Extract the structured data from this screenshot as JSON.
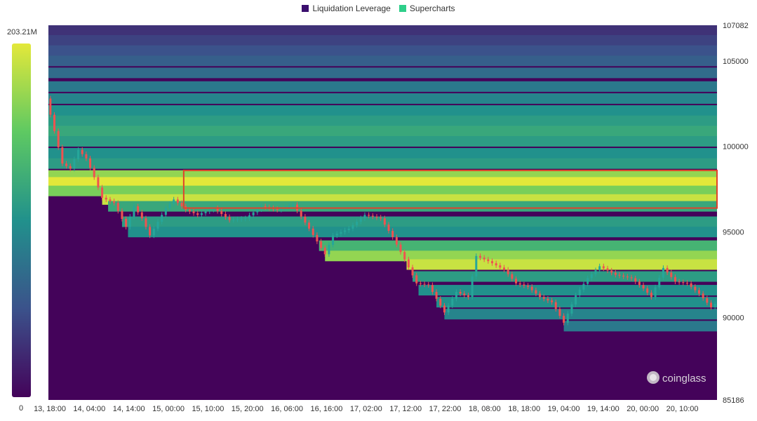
{
  "legend": {
    "items": [
      {
        "label": "Liquidation Leverage",
        "color": "#3b0f6e"
      },
      {
        "label": "Supercharts",
        "color": "#2fcf8a"
      }
    ]
  },
  "colorbar": {
    "max_label": "203.21M",
    "min_label": "0",
    "colors": [
      "#44035a",
      "#3b528b",
      "#21918c",
      "#5ec962",
      "#e3e83a"
    ]
  },
  "watermark": {
    "text": "coinglass",
    "icon": "coinglass-logo-icon"
  },
  "highlight": {
    "color": "#e0422b",
    "from": "15, 04:00",
    "price_low": 96400,
    "price_high": 98600
  },
  "chart_data": {
    "type": "heatmap",
    "title": "",
    "x_ticks": [
      "13, 18:00",
      "14, 04:00",
      "14, 14:00",
      "15, 00:00",
      "15, 10:00",
      "15, 20:00",
      "16, 06:00",
      "16, 16:00",
      "17, 02:00",
      "17, 12:00",
      "17, 22:00",
      "18, 08:00",
      "18, 18:00",
      "19, 04:00",
      "19, 14:00",
      "20, 00:00",
      "20, 10:00"
    ],
    "y_ticks": [
      "107082",
      "105000",
      "100000",
      "95000",
      "90000",
      "85186"
    ],
    "ylim": [
      85186,
      107082
    ],
    "x_range_hours": [
      0,
      168
    ],
    "price_path": [
      [
        0,
        102800
      ],
      [
        4,
        99000
      ],
      [
        6,
        98700
      ],
      [
        8,
        99800
      ],
      [
        10,
        99300
      ],
      [
        12,
        98200
      ],
      [
        14,
        97000
      ],
      [
        17,
        96700
      ],
      [
        20,
        95300
      ],
      [
        22,
        96500
      ],
      [
        24,
        95800
      ],
      [
        26,
        94800
      ],
      [
        28,
        95600
      ],
      [
        30,
        96400
      ],
      [
        32,
        96900
      ],
      [
        35,
        96300
      ],
      [
        38,
        96000
      ],
      [
        42,
        96400
      ],
      [
        46,
        95700
      ],
      [
        50,
        95800
      ],
      [
        54,
        96500
      ],
      [
        58,
        96300
      ],
      [
        62,
        96600
      ],
      [
        66,
        95200
      ],
      [
        70,
        93700
      ],
      [
        72,
        94800
      ],
      [
        76,
        95200
      ],
      [
        80,
        96000
      ],
      [
        84,
        95800
      ],
      [
        87,
        94700
      ],
      [
        90,
        93400
      ],
      [
        93,
        92000
      ],
      [
        96,
        91900
      ],
      [
        100,
        90300
      ],
      [
        103,
        91500
      ],
      [
        106,
        91200
      ],
      [
        108,
        93600
      ],
      [
        111,
        93300
      ],
      [
        115,
        92800
      ],
      [
        118,
        92000
      ],
      [
        121,
        91800
      ],
      [
        124,
        91200
      ],
      [
        127,
        90900
      ],
      [
        130,
        89700
      ],
      [
        133,
        91300
      ],
      [
        136,
        92300
      ],
      [
        139,
        93000
      ],
      [
        143,
        92500
      ],
      [
        147,
        92300
      ],
      [
        150,
        91700
      ],
      [
        152,
        91200
      ],
      [
        155,
        92900
      ],
      [
        158,
        92100
      ],
      [
        161,
        92000
      ],
      [
        164,
        91400
      ],
      [
        167,
        90600
      ],
      [
        168,
        90800
      ]
    ],
    "liquidation_bands": [
      {
        "price": 106800,
        "intensity": 0.15
      },
      {
        "price": 106200,
        "intensity": 0.2
      },
      {
        "price": 105600,
        "intensity": 0.25
      },
      {
        "price": 105000,
        "intensity": 0.3
      },
      {
        "price": 104300,
        "intensity": 0.35
      },
      {
        "price": 103500,
        "intensity": 0.4
      },
      {
        "price": 102800,
        "intensity": 0.45
      },
      {
        "price": 102100,
        "intensity": 0.5
      },
      {
        "price": 101500,
        "intensity": 0.55
      },
      {
        "price": 100900,
        "intensity": 0.6
      },
      {
        "price": 100300,
        "intensity": 0.55
      },
      {
        "price": 99600,
        "intensity": 0.5
      },
      {
        "price": 99000,
        "intensity": 0.55
      },
      {
        "price": 98300,
        "intensity": 0.85
      },
      {
        "price": 97900,
        "intensity": 1.0
      },
      {
        "price": 97400,
        "intensity": 0.8
      },
      {
        "price": 96900,
        "intensity": 0.95
      },
      {
        "price": 96500,
        "intensity": 0.6
      },
      {
        "price": 95600,
        "intensity": 0.55
      },
      {
        "price": 95000,
        "intensity": 0.5
      },
      {
        "price": 94200,
        "intensity": 0.65
      },
      {
        "price": 93600,
        "intensity": 0.85
      },
      {
        "price": 93100,
        "intensity": 0.95
      },
      {
        "price": 92400,
        "intensity": 0.55
      },
      {
        "price": 91600,
        "intensity": 0.5
      },
      {
        "price": 90900,
        "intensity": 0.5
      },
      {
        "price": 90200,
        "intensity": 0.45
      },
      {
        "price": 89500,
        "intensity": 0.4
      },
      {
        "price": 88800,
        "intensity": 0.55
      },
      {
        "price": 88100,
        "intensity": 0.75
      },
      {
        "price": 87200,
        "intensity": 0.35
      },
      {
        "price": 86300,
        "intensity": 0.25
      }
    ]
  }
}
